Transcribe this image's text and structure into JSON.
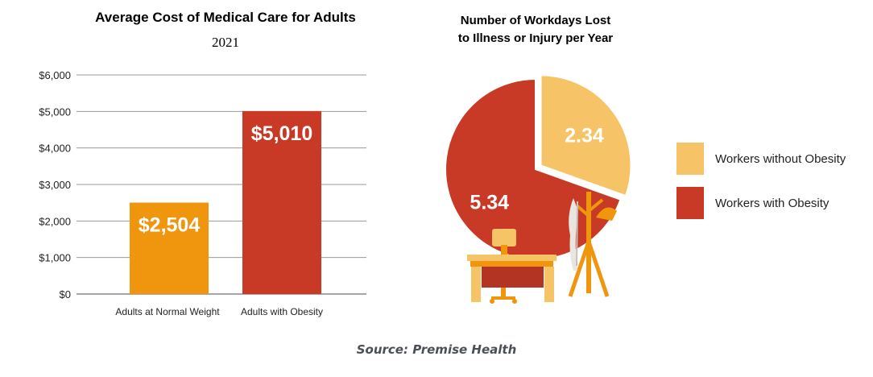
{
  "chart_data": [
    {
      "type": "bar",
      "title": "Average Cost of Medical Care for Adults",
      "subtitle": "2021",
      "categories": [
        "Adults at Normal Weight",
        "Adults with Obesity"
      ],
      "values": [
        2504,
        5010
      ],
      "value_labels": [
        "$2,504",
        "$5,010"
      ],
      "colors": [
        "#f0960e",
        "#c83a26"
      ],
      "ylim": [
        0,
        6000
      ],
      "yticks": [
        0,
        1000,
        2000,
        3000,
        4000,
        5000,
        6000
      ],
      "ytick_labels": [
        "$0",
        "$1,000",
        "$2,000",
        "$3,000",
        "$4,000",
        "$5,000",
        "$6,000"
      ],
      "grid": true
    },
    {
      "type": "pie",
      "title_lines": [
        "Number of Workdays Lost",
        "to Illness or Injury per Year"
      ],
      "labels": [
        "Workers without Obesity",
        "Workers with Obesity"
      ],
      "values": [
        2.34,
        5.34
      ],
      "value_labels": [
        "2.34",
        "5.34"
      ],
      "colors": [
        "#f6c367",
        "#c83a26"
      ],
      "legend_position": "right"
    }
  ],
  "source": "Source: Premise Health"
}
